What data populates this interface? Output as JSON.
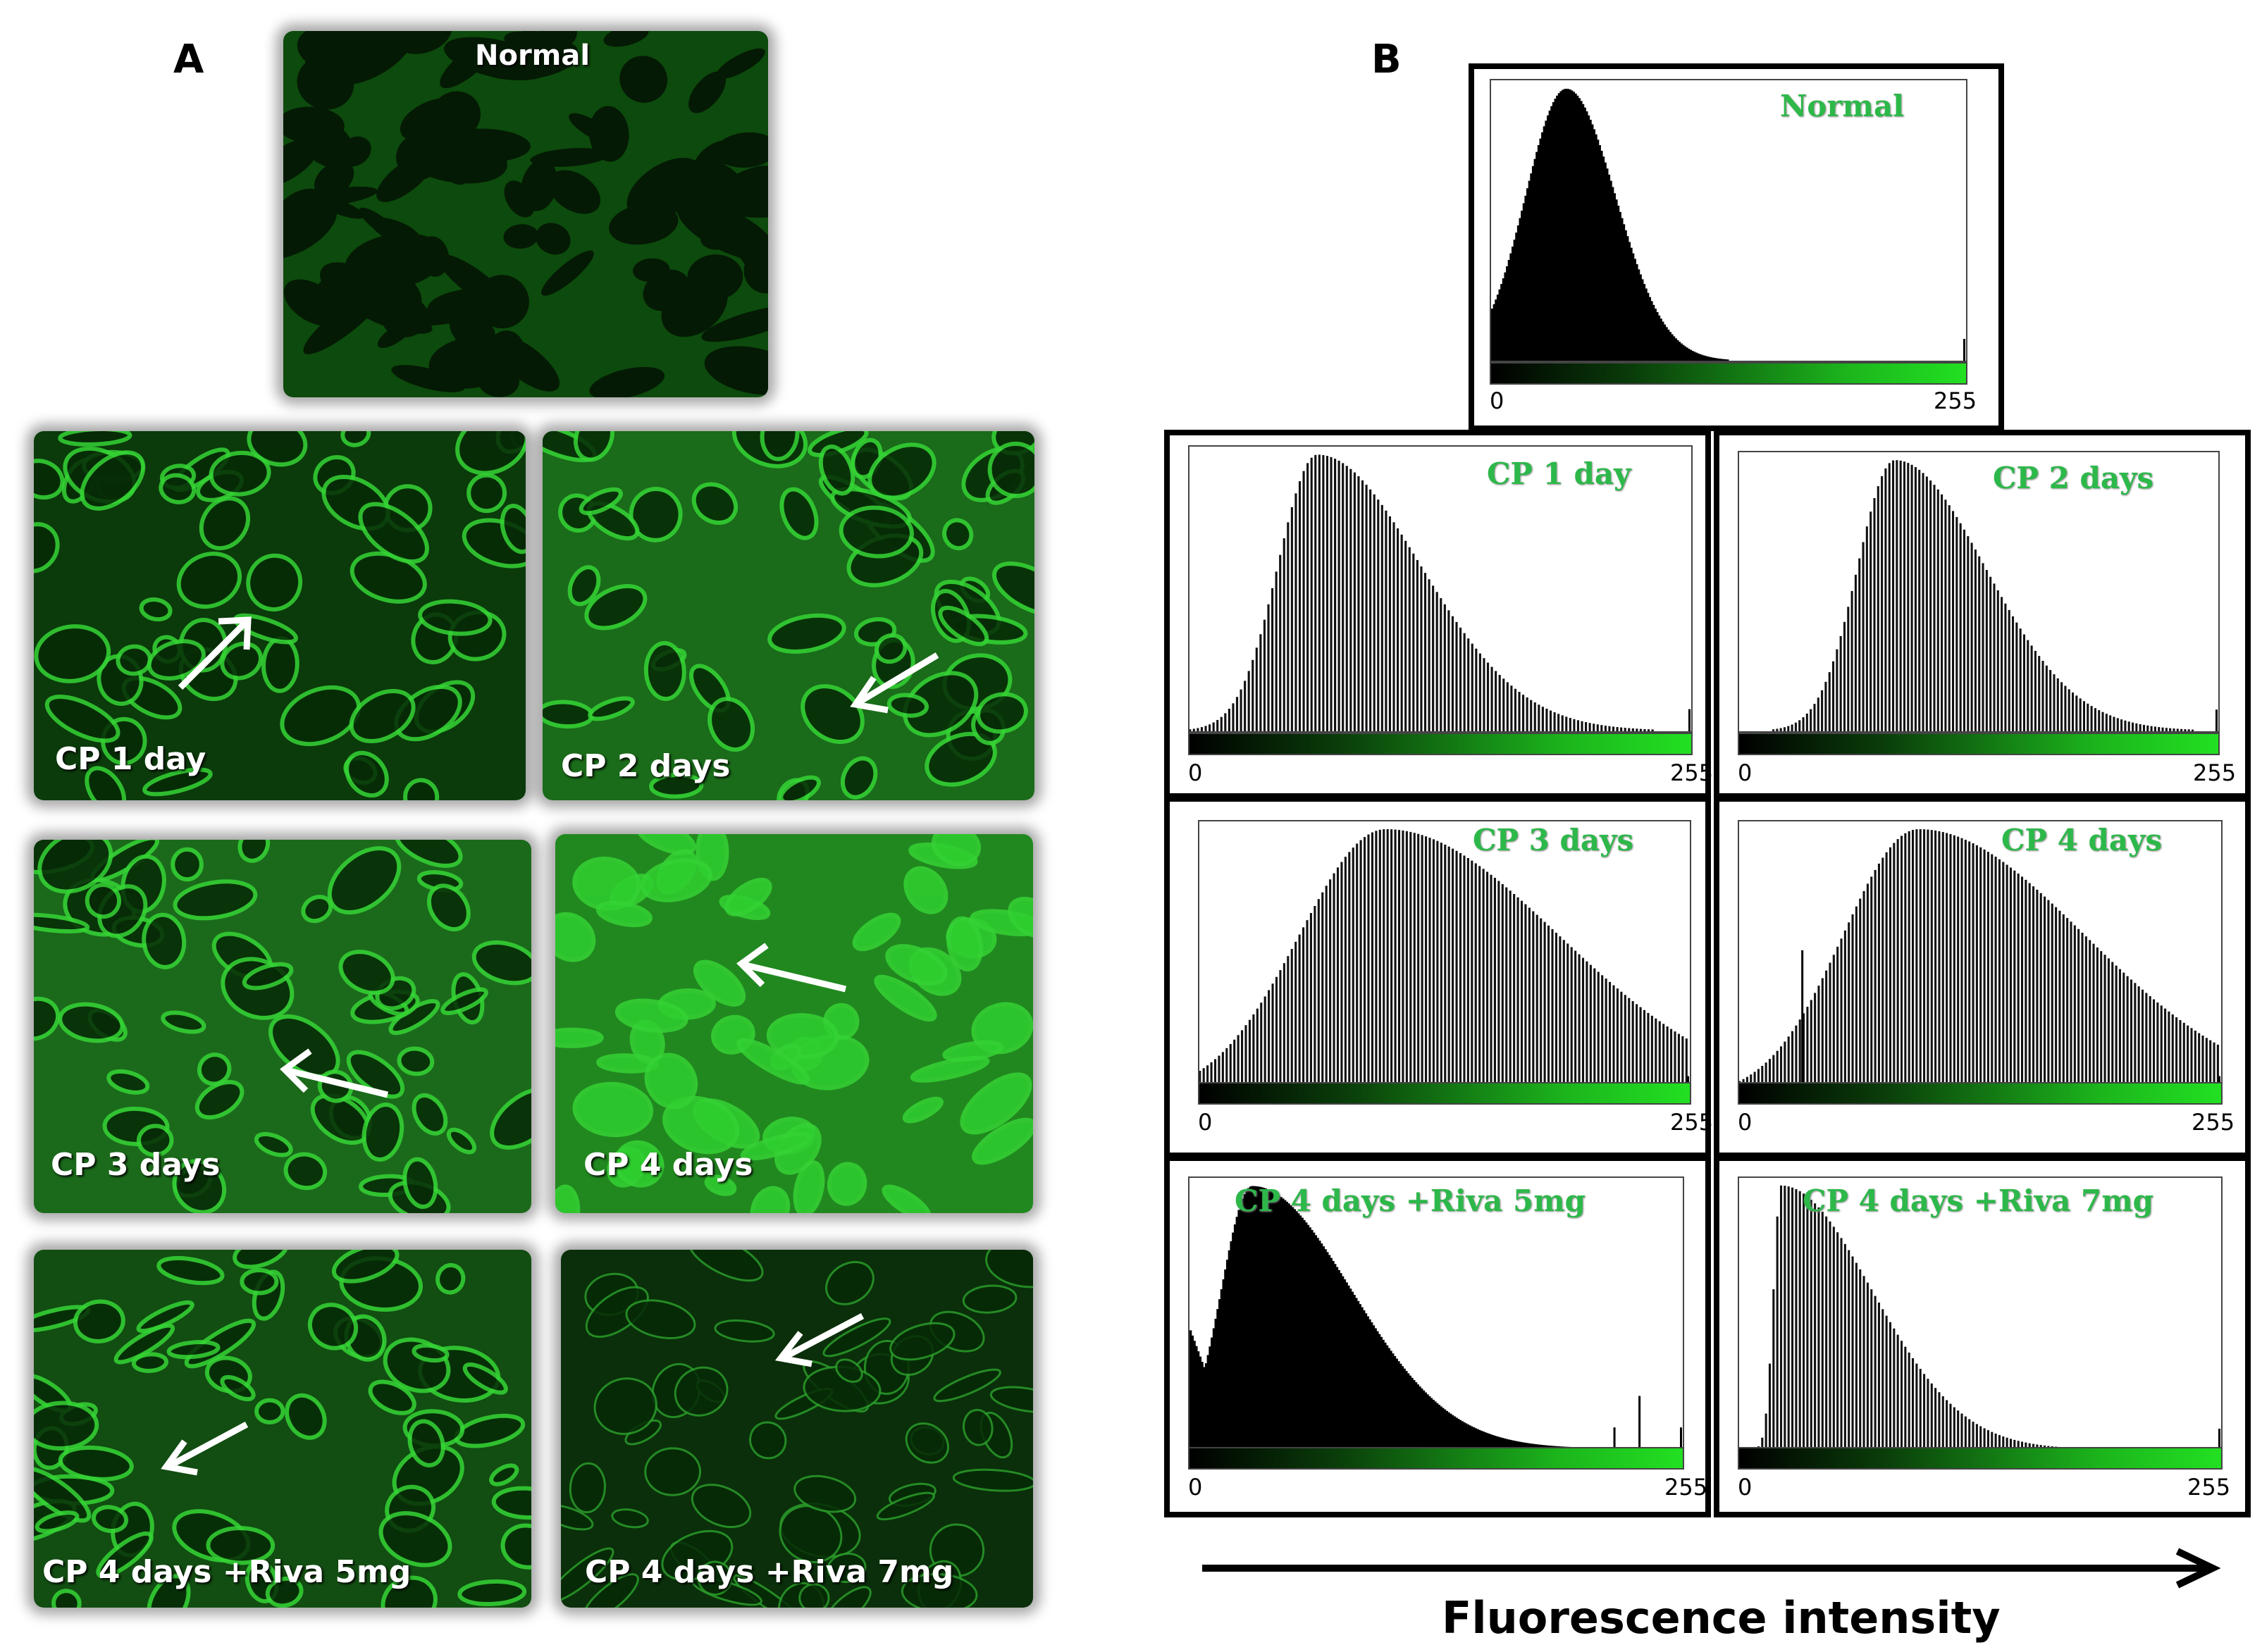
{
  "panel_a": {
    "letter": "A",
    "images": [
      {
        "label": "Normal"
      },
      {
        "label": "CP 1 day"
      },
      {
        "label": "CP 2 days"
      },
      {
        "label": "CP 3 days"
      },
      {
        "label": "CP 4 days"
      },
      {
        "label": "CP 4 days +Riva 5mg"
      },
      {
        "label": "CP 4 days +Riva 7mg"
      }
    ]
  },
  "panel_b": {
    "letter": "B",
    "axis_title": "Fluorescence intensity",
    "tick_min": "0",
    "tick_max": "255"
  },
  "colors": {
    "fluorescence_green": "#22e022",
    "label_green": "#2db84a",
    "histogram_bar": "#000000"
  },
  "chart_data": [
    {
      "type": "bar",
      "title": "Normal",
      "x_range": [
        0,
        255
      ],
      "shape": "histogram",
      "peak_x": 40,
      "spread": 22,
      "skew": 1.2,
      "style": "solid",
      "spikes": []
    },
    {
      "type": "bar",
      "title": "CP 1 day",
      "x_range": [
        0,
        255
      ],
      "shape": "histogram",
      "peak_x": 65,
      "spread": 20,
      "skew": 2.6,
      "style": "lines",
      "spikes": []
    },
    {
      "type": "bar",
      "title": "CP 2 days",
      "x_range": [
        0,
        255
      ],
      "shape": "histogram",
      "peak_x": 83,
      "spread": 20,
      "skew": 2.4,
      "style": "lines",
      "spikes": []
    },
    {
      "type": "bar",
      "title": "CP 3 days",
      "x_range": [
        0,
        255
      ],
      "shape": "histogram",
      "peak_x": 97,
      "spread": 45,
      "skew": 2.0,
      "style": "lines",
      "spikes": []
    },
    {
      "type": "bar",
      "title": "CP 4 days",
      "x_range": [
        0,
        255
      ],
      "shape": "histogram",
      "peak_x": 95,
      "spread": 40,
      "skew": 2.2,
      "style": "lines",
      "spikes": [
        {
          "x": 33,
          "h": 0.55
        }
      ]
    },
    {
      "type": "bar",
      "title": "CP 4 days +Riva 5mg",
      "x_range": [
        0,
        255
      ],
      "shape": "histogram",
      "peak_x": 32,
      "spread": 16,
      "skew": 3.2,
      "style": "solid",
      "spikes": [
        {
          "x": 220,
          "h": 0.08
        },
        {
          "x": 233,
          "h": 0.2
        }
      ]
    },
    {
      "type": "bar",
      "title": "CP 4 days +Riva 7mg",
      "x_range": [
        0,
        255
      ],
      "shape": "histogram",
      "peak_x": 22,
      "spread": 4,
      "skew": 12,
      "style": "lines",
      "spikes": []
    }
  ]
}
